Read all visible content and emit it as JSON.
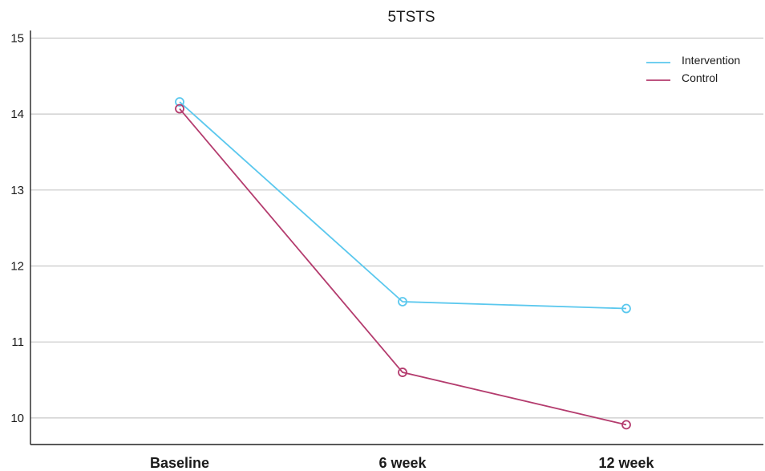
{
  "chart_data": {
    "type": "line",
    "title": "5TSTS",
    "xlabel": "",
    "ylabel": "",
    "categories": [
      "Baseline",
      "6 week",
      "12 week"
    ],
    "ylim": [
      9.65,
      15.1
    ],
    "yticks": [
      10,
      11,
      12,
      13,
      14,
      15
    ],
    "grid": true,
    "legend_position": "top-right",
    "series": [
      {
        "name": "Intervention",
        "color": "#5bc8ee",
        "marker": "open-circle",
        "values": [
          14.16,
          11.53,
          11.44
        ]
      },
      {
        "name": "Control",
        "color": "#b43c6e",
        "marker": "open-circle",
        "values": [
          14.07,
          10.6,
          9.91
        ]
      }
    ]
  }
}
